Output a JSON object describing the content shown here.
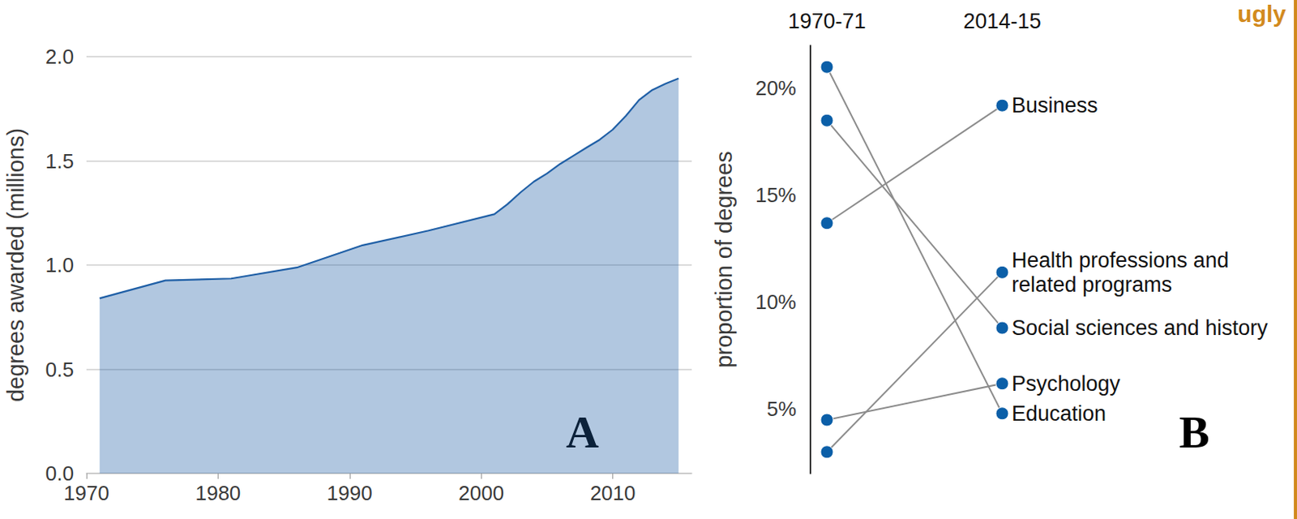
{
  "annotations": [
    "ugly"
  ],
  "chart_data": [
    {
      "type": "area",
      "x": [
        1971,
        1976,
        1981,
        1986,
        1991,
        1996,
        2001,
        2002,
        2003,
        2004,
        2005,
        2006,
        2007,
        2008,
        2009,
        2010,
        2011,
        2012,
        2013,
        2014,
        2015
      ],
      "values": [
        0.84,
        0.926,
        0.935,
        0.988,
        1.095,
        1.165,
        1.244,
        1.292,
        1.349,
        1.4,
        1.439,
        1.485,
        1.524,
        1.563,
        1.601,
        1.65,
        1.716,
        1.792,
        1.84,
        1.87,
        1.895
      ],
      "color": "#1f5fa6",
      "ylabel": "degrees awarded (millions)",
      "xlim": [
        1970,
        2016
      ],
      "xticks": [
        1970,
        1980,
        1990,
        2000,
        2010
      ],
      "ylim": [
        0,
        2
      ],
      "yticks": [
        {
          "value": 0,
          "label": "0.0"
        },
        0.5,
        {
          "value": 1,
          "label": "1.0"
        },
        1.5,
        {
          "value": 2,
          "label": "2.0"
        }
      ],
      "grid": true,
      "annotations": [
        "A"
      ]
    },
    {
      "type": "slope",
      "categories": [
        "1970-71",
        "2014-15"
      ],
      "series": [
        {
          "name": "Education",
          "values": [
            21.0,
            4.8
          ]
        },
        {
          "name": "Social sciences and history",
          "values": [
            18.5,
            8.8
          ]
        },
        {
          "name": "Business",
          "values": [
            13.7,
            19.2
          ]
        },
        {
          "name": "Psychology",
          "values": [
            4.5,
            6.2
          ]
        },
        {
          "name": "Health professions and related programs",
          "values": [
            3.0,
            11.4
          ]
        }
      ],
      "color": "#0b5fa8",
      "ylabel": "proportion of degrees",
      "ylim": [
        2,
        22
      ],
      "yticks": [
        {
          "value": 5,
          "label": "5%"
        },
        {
          "value": 10,
          "label": "10%"
        },
        {
          "value": 15,
          "label": "15%"
        },
        {
          "value": 20,
          "label": "20%"
        }
      ],
      "grid": false,
      "annotations": [
        "B"
      ]
    }
  ]
}
